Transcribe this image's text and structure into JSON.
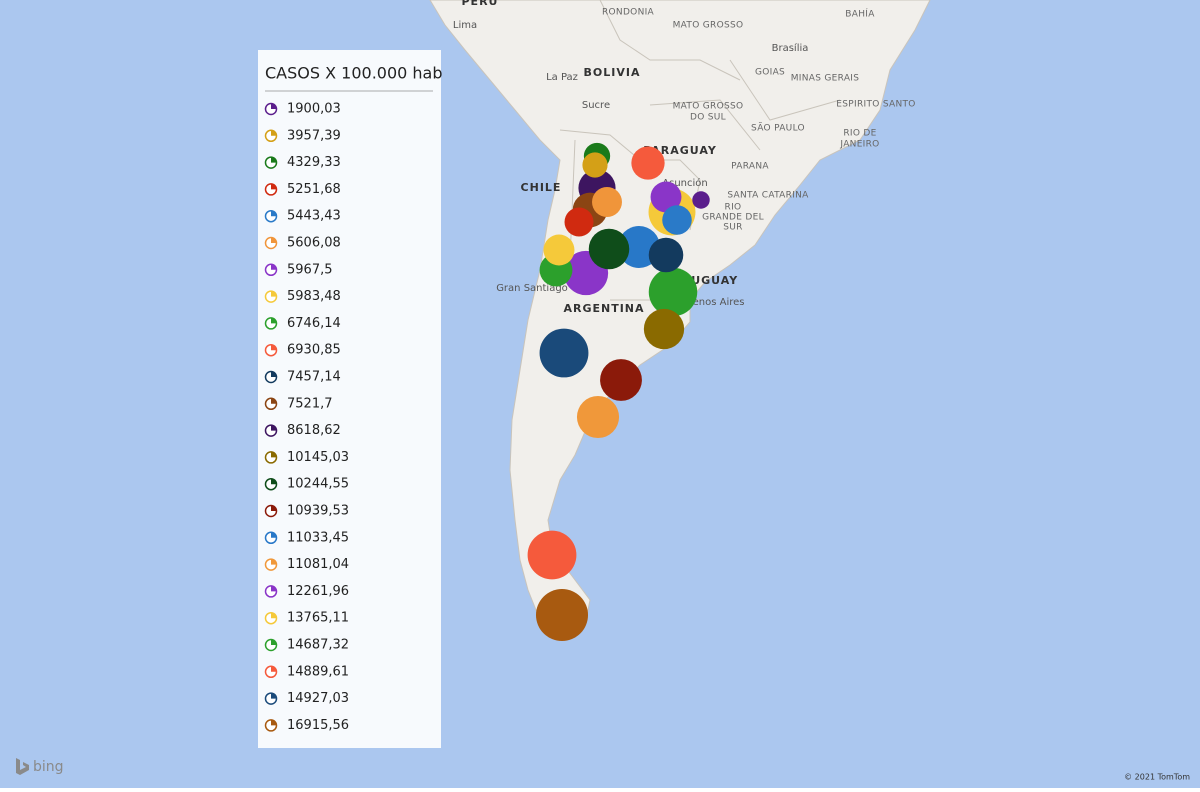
{
  "map": {
    "labels": [
      "PERU",
      "Lima",
      "RONDONIA",
      "MATO GROSSO",
      "BAHÍA",
      "Brasília",
      "GOIAS",
      "MINAS GERAIS",
      "La Paz",
      "BOLIVIA",
      "Sucre",
      "MATO GROSSO",
      "DO SUL",
      "ESPIRITO SANTO",
      "SÃO PAULO",
      "RIO DE",
      "JANEIRO",
      "PARAGUAY",
      "PARANA",
      "Asunción",
      "CHILE",
      "SANTA CATARINA",
      "RIO",
      "GRANDE DEL",
      "SUR",
      "Gran Santiago",
      "URUGUAY",
      "Buenos Aires",
      "ARGENTINA"
    ],
    "brand": "bing",
    "copyright": "© 2021 TomTom"
  },
  "legend": {
    "title": "CASOS X 100.000 hab",
    "items": [
      {
        "label": "1900,03",
        "value": 1900.03,
        "color": "#5b1e8c"
      },
      {
        "label": "3957,39",
        "value": 3957.39,
        "color": "#d4a017"
      },
      {
        "label": "4329,33",
        "value": 4329.33,
        "color": "#1a7a1a"
      },
      {
        "label": "5251,68",
        "value": 5251.68,
        "color": "#d02a10"
      },
      {
        "label": "5443,43",
        "value": 5443.43,
        "color": "#2a7ac8"
      },
      {
        "label": "5606,08",
        "value": 5606.08,
        "color": "#f0953a"
      },
      {
        "label": "5967,5",
        "value": 5967.5,
        "color": "#8a35c8"
      },
      {
        "label": "5983,48",
        "value": 5983.48,
        "color": "#f5c93a"
      },
      {
        "label": "6746,14",
        "value": 6746.14,
        "color": "#2ca02c"
      },
      {
        "label": "6930,85",
        "value": 6930.85,
        "color": "#f55a3c"
      },
      {
        "label": "7457,14",
        "value": 7457.14,
        "color": "#133a5e"
      },
      {
        "label": "7521,7",
        "value": 7521.7,
        "color": "#8b4513"
      },
      {
        "label": "8618,62",
        "value": 8618.62,
        "color": "#3d1560"
      },
      {
        "label": "10145,03",
        "value": 10145.03,
        "color": "#8a6a00"
      },
      {
        "label": "10244,55",
        "value": 10244.55,
        "color": "#0f4d1a"
      },
      {
        "label": "10939,53",
        "value": 10939.53,
        "color": "#8b1a0a"
      },
      {
        "label": "11033,45",
        "value": 11033.45,
        "color": "#2878c8"
      },
      {
        "label": "11081,04",
        "value": 11081.04,
        "color": "#f0983a"
      },
      {
        "label": "12261,96",
        "value": 12261.96,
        "color": "#8a35c8"
      },
      {
        "label": "13765,11",
        "value": 13765.11,
        "color": "#f5c93a"
      },
      {
        "label": "14687,32",
        "value": 14687.32,
        "color": "#2ca02c"
      },
      {
        "label": "14889,61",
        "value": 14889.61,
        "color": "#f55a3c"
      },
      {
        "label": "14927,03",
        "value": 14927.03,
        "color": "#1a4a7a"
      },
      {
        "label": "16915,56",
        "value": 16915.56,
        "color": "#a85a10"
      }
    ]
  }
}
